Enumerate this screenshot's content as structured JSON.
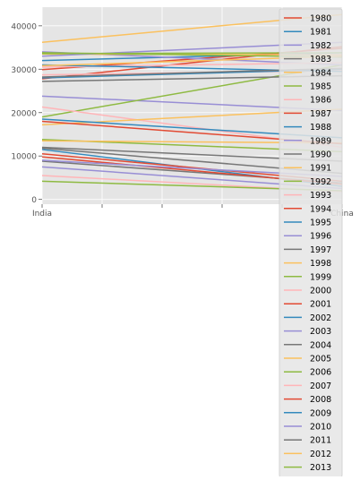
{
  "chart_data": {
    "type": "line",
    "title": "",
    "xlabel": "",
    "ylabel": "",
    "categories": [
      "India",
      "China"
    ],
    "x_ticks": [
      "India",
      "",
      "",
      "",
      "",
      "China"
    ],
    "y_ticks": [
      0,
      10000,
      20000,
      30000,
      40000
    ],
    "y_tick_labels": [
      "0",
      "10000",
      "20000",
      "30000",
      "40000"
    ],
    "ylim": [
      -1100,
      44300
    ],
    "grid": true,
    "legend_position": "right",
    "palette": [
      "#E24A33",
      "#348ABD",
      "#988ED5",
      "#777777",
      "#FBC15E",
      "#8EBA42",
      "#FFB5B8"
    ],
    "series": [
      {
        "name": "1980",
        "values": [
          29900,
          34800
        ]
      },
      {
        "name": "1981",
        "values": [
          11500,
          3000
        ]
      },
      {
        "name": "1982",
        "values": [
          23800,
          20500
        ]
      },
      {
        "name": "1983",
        "values": [
          11800,
          6000
        ]
      },
      {
        "name": "1984",
        "values": [
          36200,
          42600
        ]
      },
      {
        "name": "1985",
        "values": [
          19000,
          31000
        ]
      },
      {
        "name": "1986",
        "values": [
          21300,
          12000
        ]
      },
      {
        "name": "1987",
        "values": [
          10500,
          4200
        ]
      },
      {
        "name": "1988",
        "values": [
          32000,
          33800
        ]
      },
      {
        "name": "1989",
        "values": [
          7500,
          2500
        ]
      },
      {
        "name": "1990",
        "values": [
          27200,
          28500
        ]
      },
      {
        "name": "1991",
        "values": [
          17200,
          20800
        ]
      },
      {
        "name": "1992",
        "values": [
          13800,
          11000
        ]
      },
      {
        "name": "1993",
        "values": [
          5500,
          1800
        ]
      },
      {
        "name": "1994",
        "values": [
          27800,
          35200
        ]
      },
      {
        "name": "1995",
        "values": [
          18500,
          14200
        ]
      },
      {
        "name": "1996",
        "values": [
          34000,
          31000
        ]
      },
      {
        "name": "1997",
        "values": [
          8800,
          3800
        ]
      },
      {
        "name": "1998",
        "values": [
          33500,
          33300
        ]
      },
      {
        "name": "1999",
        "values": [
          4200,
          2000
        ]
      },
      {
        "name": "2000",
        "values": [
          28700,
          29700
        ]
      },
      {
        "name": "2001",
        "values": [
          9800,
          3500
        ]
      },
      {
        "name": "2002",
        "values": [
          28000,
          30000
        ]
      },
      {
        "name": "2003",
        "values": [
          9000,
          5300
        ]
      },
      {
        "name": "2004",
        "values": [
          12000,
          8800
        ]
      },
      {
        "name": "2005",
        "values": [
          13500,
          13000
        ]
      },
      {
        "name": "2006",
        "values": [
          33800,
          32800
        ]
      },
      {
        "name": "2007",
        "values": [
          30500,
          31500
        ]
      },
      {
        "name": "2008",
        "values": [
          18000,
          12800
        ]
      },
      {
        "name": "2009",
        "values": [
          31000,
          29500
        ]
      },
      {
        "name": "2010",
        "values": [
          33000,
          36200
        ]
      },
      {
        "name": "2011",
        "values": [
          28200,
          30200
        ]
      },
      {
        "name": "2012",
        "values": [
          30800,
          33000
        ]
      },
      {
        "name": "2013",
        "values": [
          33600,
          33800
        ]
      }
    ]
  }
}
